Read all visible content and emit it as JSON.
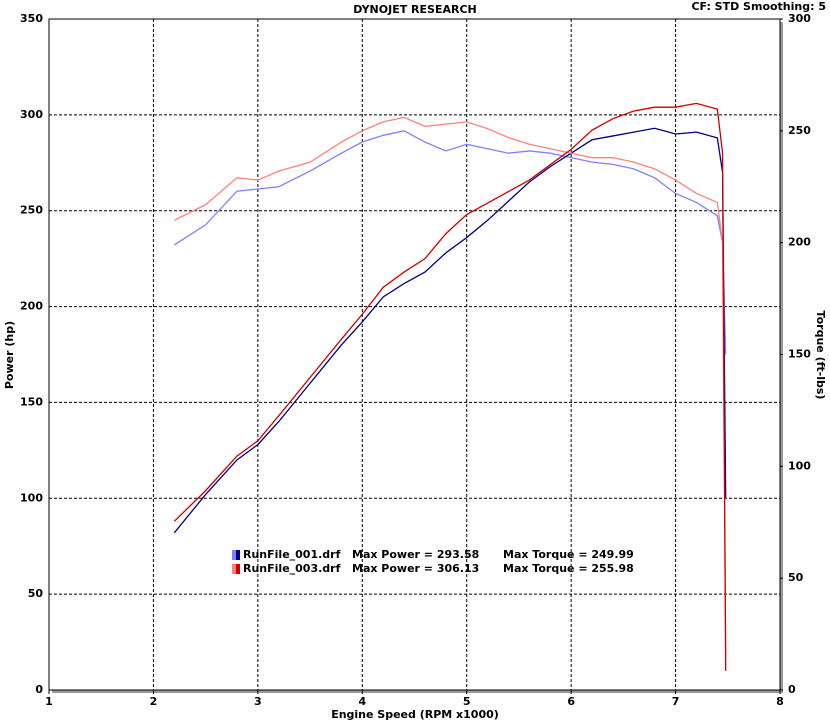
{
  "chart_data": {
    "type": "line",
    "title": "DYNOJET RESEARCH",
    "subtitle": "CF: STD  Smoothing: 5",
    "x_label": "Engine Speed (RPM x1000)",
    "y_label": "Power (hp)",
    "y2_label": "Torque (ft-lbs)",
    "x": [
      2.2,
      2.5,
      2.8,
      3.0,
      3.2,
      3.5,
      3.8,
      4.0,
      4.2,
      4.4,
      4.6,
      4.8,
      5.0,
      5.2,
      5.4,
      5.6,
      5.8,
      6.0,
      6.2,
      6.4,
      6.6,
      6.8,
      7.0,
      7.2,
      7.4,
      7.45,
      7.48
    ],
    "xlim": [
      1,
      8
    ],
    "xticks": [
      1,
      2,
      3,
      4,
      5,
      6,
      7,
      8
    ],
    "ylim": [
      0,
      350
    ],
    "yticks": [
      0,
      50,
      100,
      150,
      200,
      250,
      300,
      350
    ],
    "y2lim": [
      0,
      300
    ],
    "y2ticks": [
      0,
      50,
      100,
      150,
      200,
      250,
      300
    ],
    "grid": true,
    "series": [
      {
        "name": "RunFile_001.drf",
        "power_color": "#000080",
        "torque_color": "#8080ff",
        "max_power_label": "Max Power = 293.58",
        "max_torque_label": "Max Torque = 249.99",
        "power": [
          82,
          102,
          120,
          128,
          140,
          160,
          180,
          192,
          205,
          212,
          218,
          228,
          236,
          245,
          255,
          265,
          273,
          280,
          287,
          289,
          291,
          293,
          290,
          291,
          288,
          270,
          100
        ],
        "torque": [
          199,
          208,
          223,
          224,
          225,
          232,
          240,
          245,
          248,
          250,
          245,
          241,
          244,
          242,
          240,
          241,
          240,
          238,
          236,
          235,
          233,
          229,
          222,
          218,
          212,
          200,
          150
        ]
      },
      {
        "name": "RunFile_003.drf",
        "power_color": "#cc0000",
        "torque_color": "#ff8080",
        "max_power_label": "Max Power = 306.13",
        "max_torque_label": "Max Torque = 255.98",
        "power": [
          88,
          104,
          122,
          130,
          143,
          163,
          183,
          196,
          210,
          218,
          225,
          238,
          248,
          254,
          260,
          266,
          274,
          282,
          292,
          298,
          302,
          304,
          304,
          306,
          303,
          280,
          10
        ],
        "torque": [
          210,
          217,
          229,
          228,
          232,
          236,
          245,
          250,
          254,
          256,
          252,
          253,
          254,
          251,
          247,
          244,
          242,
          240,
          238,
          238,
          236,
          233,
          228,
          222,
          218,
          200,
          15
        ]
      }
    ]
  }
}
